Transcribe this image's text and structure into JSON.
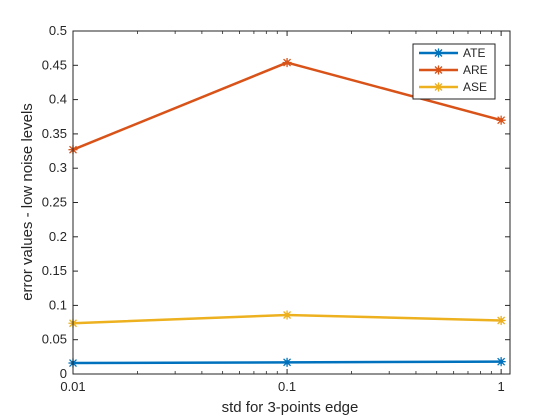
{
  "chart_data": {
    "type": "line",
    "x_scale": "log",
    "x": [
      0.01,
      0.1,
      1
    ],
    "xlabel": "std for 3-points edge",
    "ylabel": "error values - low noise levels",
    "xlim": [
      0.01,
      1.1
    ],
    "ylim": [
      0,
      0.5
    ],
    "x_ticks": [
      {
        "value": 0.01,
        "label": "0.01"
      },
      {
        "value": 0.1,
        "label": "0.1"
      },
      {
        "value": 1,
        "label": "1"
      }
    ],
    "y_ticks": [
      {
        "value": 0,
        "label": "0"
      },
      {
        "value": 0.05,
        "label": "0.05"
      },
      {
        "value": 0.1,
        "label": "0.1"
      },
      {
        "value": 0.15,
        "label": "0.15"
      },
      {
        "value": 0.2,
        "label": "0.2"
      },
      {
        "value": 0.25,
        "label": "0.25"
      },
      {
        "value": 0.3,
        "label": "0.3"
      },
      {
        "value": 0.35,
        "label": "0.35"
      },
      {
        "value": 0.4,
        "label": "0.4"
      },
      {
        "value": 0.45,
        "label": "0.45"
      },
      {
        "value": 0.5,
        "label": "0.5"
      }
    ],
    "grid": false,
    "legend_position": "top-right",
    "series": [
      {
        "name": "ATE",
        "color": "#0072BD",
        "values": [
          0.016,
          0.017,
          0.018
        ]
      },
      {
        "name": "ARE",
        "color": "#D95319",
        "values": [
          0.327,
          0.454,
          0.37
        ]
      },
      {
        "name": "ASE",
        "color": "#EDB120",
        "values": [
          0.074,
          0.086,
          0.078
        ]
      }
    ]
  }
}
